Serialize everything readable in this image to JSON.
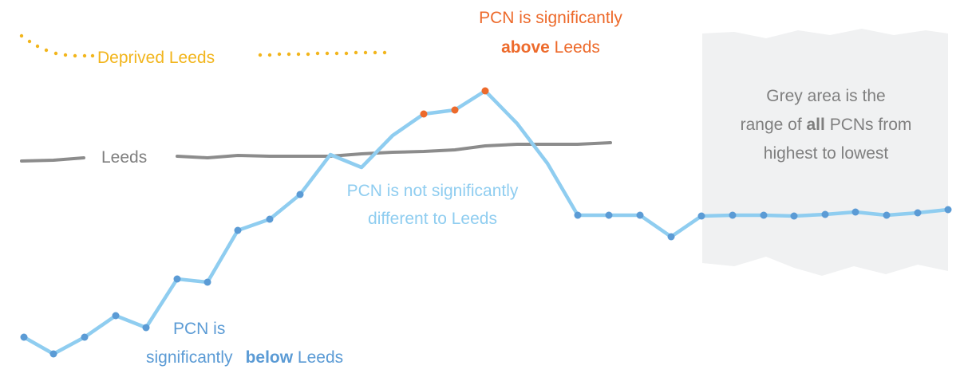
{
  "legend": {
    "deprived": "Deprived Leeds",
    "leeds": "Leeds"
  },
  "annotations": {
    "above": {
      "line1": "PCN is significantly",
      "bold": "above",
      "rest": "Leeds"
    },
    "grey": {
      "line1": "Grey area is the",
      "line2a": "range of",
      "bold": "all",
      "line2b": "PCNs from",
      "line3": "highest to lowest"
    },
    "not_significant": {
      "line1": "PCN is not significantly",
      "line2": "different to Leeds"
    },
    "below": {
      "line1": "PCN is",
      "line2a": "significantly",
      "bold": "below",
      "rest": "Leeds"
    }
  }
}
